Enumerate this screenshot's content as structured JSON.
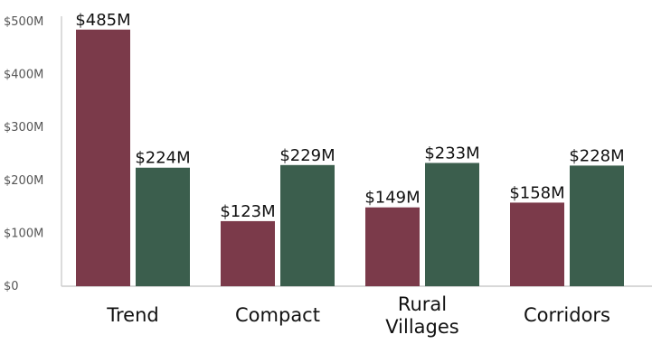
{
  "chart_data": {
    "type": "bar",
    "categories": [
      [
        "Trend"
      ],
      [
        "Compact"
      ],
      [
        "Rural",
        "Villages"
      ],
      [
        "Corridors"
      ]
    ],
    "series": [
      {
        "color": "#7b3a4a",
        "values": [
          485,
          123,
          149,
          158
        ],
        "labels": [
          "$485M",
          "$123M",
          "$149M",
          "$158M"
        ]
      },
      {
        "color": "#3b5e4d",
        "values": [
          224,
          229,
          233,
          228
        ],
        "labels": [
          "$224M",
          "$229M",
          "$233M",
          "$228M"
        ]
      }
    ],
    "yticks": [
      {
        "value": 0,
        "label": "$0"
      },
      {
        "value": 100,
        "label": "$100M"
      },
      {
        "value": 200,
        "label": "$200M"
      },
      {
        "value": 300,
        "label": "$300M"
      },
      {
        "value": 400,
        "label": "$400M"
      },
      {
        "value": 500,
        "label": "$500M"
      }
    ],
    "ylim": [
      0,
      500
    ],
    "title": "",
    "xlabel": "",
    "ylabel": "",
    "grid": false,
    "legend": "none"
  }
}
